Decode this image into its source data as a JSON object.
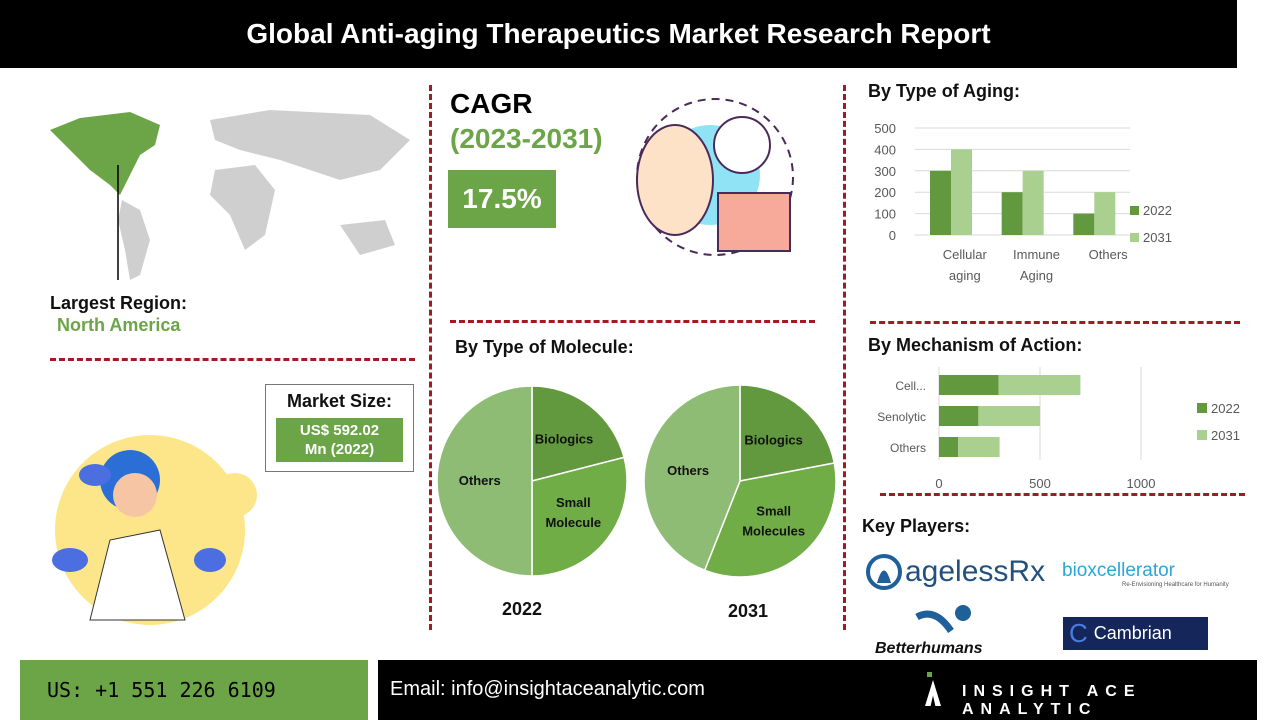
{
  "title": "Global Anti-aging Therapeutics Market Research Report",
  "region": {
    "label": "Largest Region:",
    "value": "North America"
  },
  "market_size": {
    "label": "Market Size:",
    "value_line1": "US$ 592.02",
    "value_line2": "Mn (2022)"
  },
  "cagr": {
    "label": "CAGR",
    "period": "(2023-2031)",
    "value": "17.5%"
  },
  "colors": {
    "dark": "#62993e",
    "light": "#a9d08e",
    "mid": "#70ad47",
    "pie_others": "#8fbc74"
  },
  "chart_data": [
    {
      "type": "bar",
      "title": "By Type of Aging:",
      "categories": [
        "Cellular aging",
        "Immune Aging",
        "Others"
      ],
      "category_lines": [
        [
          "Cellular",
          "aging"
        ],
        [
          "Immune",
          "Aging"
        ],
        [
          "Others"
        ]
      ],
      "series": [
        {
          "name": "2022",
          "values": [
            300,
            200,
            100
          ]
        },
        {
          "name": "2031",
          "values": [
            400,
            300,
            200
          ]
        }
      ],
      "ylim": [
        0,
        500
      ],
      "yticks": [
        "0",
        "100",
        "200",
        "300",
        "400",
        "500"
      ],
      "legend": "right"
    },
    {
      "type": "bar",
      "orientation": "horizontal-stacked",
      "title": "By Mechanism of Action:",
      "categories": [
        "Cell...",
        "Senolytic",
        "Others"
      ],
      "series": [
        {
          "name": "2022",
          "values": [
            295,
            195,
            95
          ]
        },
        {
          "name": "2031",
          "values": [
            405,
            305,
            205
          ]
        }
      ],
      "xlim": [
        0,
        1000
      ],
      "xticks": [
        "0",
        "500",
        "1000"
      ],
      "legend": "right"
    },
    {
      "type": "pie",
      "title": "By Type of Molecule:",
      "label": "2022",
      "slices": [
        {
          "name": "Biologics",
          "value": 21
        },
        {
          "name": "Small Molecule",
          "value": 29
        },
        {
          "name": "Others",
          "value": 50
        }
      ]
    },
    {
      "type": "pie",
      "label": "2031",
      "slices": [
        {
          "name": "Biologics",
          "value": 22
        },
        {
          "name": "Small Molecules",
          "value": 34
        },
        {
          "name": "Others",
          "value": 44
        }
      ]
    }
  ],
  "key_players": {
    "label": "Key Players:",
    "logos": [
      "agelessRx",
      "bioxcellerator",
      "Betterhumans",
      "Cambrian"
    ],
    "biox_tagline": "Re-Envisioning Healthcare for Humanity"
  },
  "footer": {
    "phone": "US: +1 551 226 6109",
    "email": "Email: info@insightaceanalytic.com",
    "brand": "INSIGHT ACE ANALYTIC"
  }
}
